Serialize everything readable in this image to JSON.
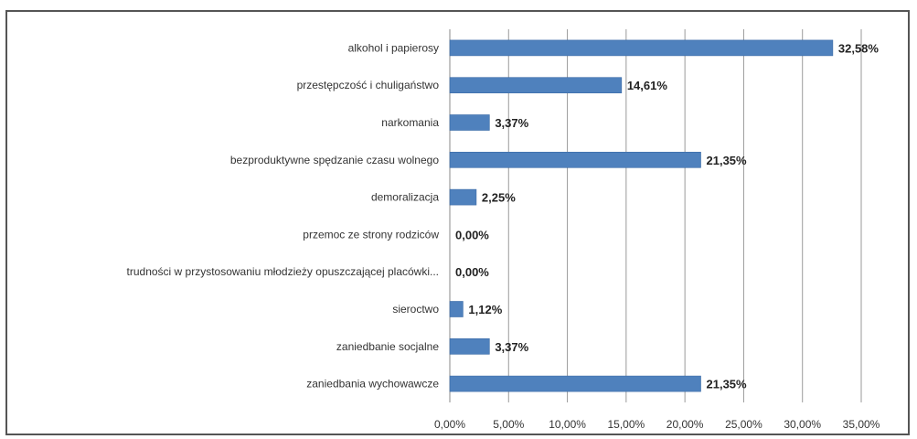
{
  "chart_data": {
    "type": "bar",
    "orientation": "horizontal",
    "categories": [
      "alkohol i papierosy",
      "przestępczość i chuligaństwo",
      "narkomania",
      "bezproduktywne spędzanie czasu wolnego",
      "demoralizacja",
      "przemoc ze strony rodziców",
      "trudności w przystosowaniu młodzieży opuszczającej placówki...",
      "sieroctwo",
      "zaniedbanie socjalne",
      "zaniedbania wychowawcze"
    ],
    "values": [
      32.58,
      14.61,
      3.37,
      21.35,
      2.25,
      0.0,
      0.0,
      1.12,
      3.37,
      21.35
    ],
    "value_labels": [
      "32,58%",
      "14,61%",
      "3,37%",
      "21,35%",
      "2,25%",
      "0,00%",
      "0,00%",
      "1,12%",
      "3,37%",
      "21,35%"
    ],
    "x_ticks": [
      "0,00%",
      "5,00%",
      "10,00%",
      "15,00%",
      "20,00%",
      "25,00%",
      "30,00%",
      "35,00%"
    ],
    "xlim": [
      0,
      35
    ],
    "grid": "vertical",
    "bar_color": "#4f81bd"
  }
}
